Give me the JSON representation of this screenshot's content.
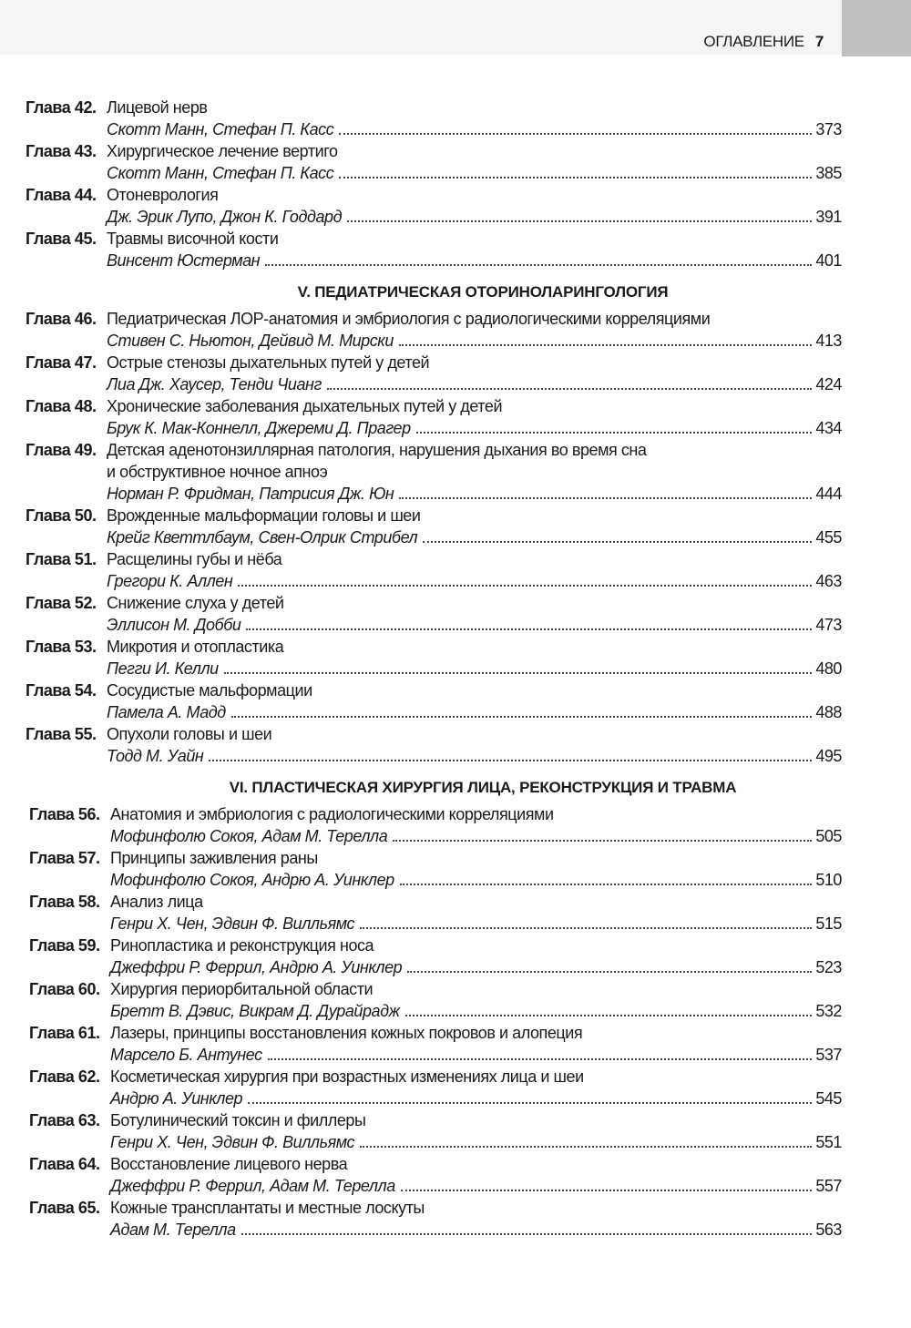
{
  "running_header": {
    "title": "ОГЛАВЛЕНИЕ",
    "page": "7"
  },
  "groups": [
    {
      "heading": "",
      "chapters": [
        {
          "label": "Глава 42.",
          "title": [
            "Лицевой нерв"
          ],
          "authors": "Скотт Манн, Стефан П. Касс",
          "page": "373"
        },
        {
          "label": "Глава 43.",
          "title": [
            "Хирургическое лечение вертиго"
          ],
          "authors": "Скотт Манн, Стефан П. Касс",
          "page": "385"
        },
        {
          "label": "Глава 44.",
          "title": [
            "Отоневрология"
          ],
          "authors": "Дж. Эрик Лупо, Джон К. Годдард",
          "page": "391"
        },
        {
          "label": "Глава 45.",
          "title": [
            "Травмы височной кости"
          ],
          "authors": "Винсент Юстерман",
          "page": "401"
        }
      ]
    },
    {
      "heading": "V. ПЕДИАТРИЧЕСКАЯ ОТОРИНОЛАРИНГОЛОГИЯ",
      "chapters": [
        {
          "label": "Глава 46.",
          "title": [
            "Педиатрическая ЛОР-анатомия и эмбриология с радиологическими корреляциями"
          ],
          "authors": "Стивен С. Ньютон, Дейвид М. Мирски",
          "page": "413"
        },
        {
          "label": "Глава 47.",
          "title": [
            "Острые стенозы дыхательных путей у детей"
          ],
          "authors": "Лиа Дж. Хаусер, Тенди Чианг",
          "page": "424"
        },
        {
          "label": "Глава 48.",
          "title": [
            "Хронические заболевания дыхательных путей у детей"
          ],
          "authors": "Брук К. Мак-Коннелл, Джереми Д. Прагер",
          "page": "434"
        },
        {
          "label": "Глава 49.",
          "title": [
            "Детская аденотонзиллярная патология, нарушения дыхания во время сна",
            "и обструктивное ночное апноэ"
          ],
          "authors": "Норман Р. Фридман, Патрисия Дж. Юн",
          "page": "444"
        },
        {
          "label": "Глава 50.",
          "title": [
            "Врожденные мальформации головы и шеи"
          ],
          "authors": "Крейг Кветтлбаум, Свен-Олрик Стрибел",
          "page": "455"
        },
        {
          "label": "Глава 51.",
          "title": [
            "Расщелины губы и нёба"
          ],
          "authors": "Грегори К. Аллен",
          "page": "463"
        },
        {
          "label": "Глава 52.",
          "title": [
            "Снижение слуха у детей"
          ],
          "authors": "Эллисон М. Добби",
          "page": "473"
        },
        {
          "label": "Глава 53.",
          "title": [
            "Микротия и отопластика"
          ],
          "authors": "Пегги И. Келли",
          "page": "480"
        },
        {
          "label": "Глава 54.",
          "title": [
            "Сосудистые мальформации"
          ],
          "authors": "Памела А. Мадд",
          "page": "488"
        },
        {
          "label": "Глава 55.",
          "title": [
            "Опухоли головы и шеи"
          ],
          "authors": "Тодд М. Уайн",
          "page": "495"
        }
      ]
    },
    {
      "heading": "VI. ПЛАСТИЧЕСКАЯ ХИРУРГИЯ ЛИЦА, РЕКОНСТРУКЦИЯ И ТРАВМА",
      "chapters": [
        {
          "label": "Глава 56.",
          "title": [
            "Анатомия и эмбриология с радиологическими корреляциями"
          ],
          "authors": "Мофинфолю Сокоя, Адам М. Терелла",
          "page": "505"
        },
        {
          "label": "Глава 57.",
          "title": [
            "Принципы заживления раны"
          ],
          "authors": "Мофинфолю Сокоя, Андрю А. Уинклер",
          "page": "510"
        },
        {
          "label": "Глава 58.",
          "title": [
            "Анализ лица"
          ],
          "authors": "Генри Х. Чен, Эдвин Ф. Вилльямс",
          "page": "515"
        },
        {
          "label": "Глава 59.",
          "title": [
            "Ринопластика и реконструкция носа"
          ],
          "authors": "Джеффри Р. Феррил, Андрю А. Уинклер",
          "page": "523"
        },
        {
          "label": "Глава 60.",
          "title": [
            "Хирургия периорбитальной области"
          ],
          "authors": "Бретт В. Дэвис, Викрам Д. Дурайрадж",
          "page": "532"
        },
        {
          "label": "Глава 61.",
          "title": [
            "Лазеры, принципы восстановления кожных покровов и алопеция"
          ],
          "authors": "Марсело Б. Антунес",
          "page": "537"
        },
        {
          "label": "Глава 62.",
          "title": [
            "Косметическая хирургия при возрастных изменениях лица и шеи"
          ],
          "authors": "Андрю А. Уинклер",
          "page": "545"
        },
        {
          "label": "Глава 63.",
          "title": [
            "Ботулинический токсин и филлеры"
          ],
          "authors": "Генри Х. Чен, Эдвин Ф. Вилльямс",
          "page": "551"
        },
        {
          "label": "Глава 64.",
          "title": [
            "Восстановление лицевого нерва"
          ],
          "authors": "Джеффри Р. Феррил, Адам М. Терелла",
          "page": "557"
        },
        {
          "label": "Глава 65.",
          "title": [
            "Кожные трансплантаты и местные лоскуты"
          ],
          "authors": "Адам М. Терелла",
          "page": "563"
        }
      ]
    }
  ]
}
